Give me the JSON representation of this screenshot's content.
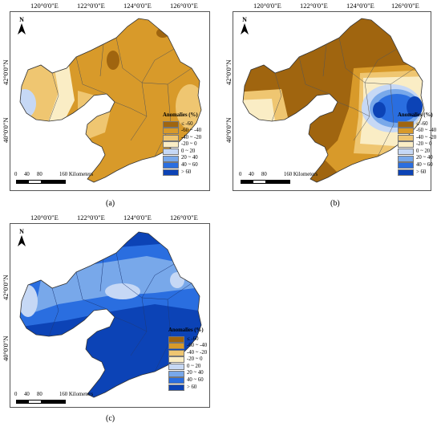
{
  "axis_ticks": {
    "top": [
      "120°0'0\"E",
      "122°0'0\"E",
      "124°0'0\"E",
      "126°0'0\"E"
    ],
    "left": [
      "42°0'0\"N",
      "40°0'0\"N"
    ]
  },
  "north_label": "N",
  "scale": {
    "labels": [
      "0",
      "40",
      "80",
      "160 Kilometers"
    ]
  },
  "legend": {
    "title": "Anomalies (%)",
    "classes": [
      {
        "label": "≤ -60",
        "color": "#a0650f"
      },
      {
        "label": "-60 ~ -40",
        "color": "#d89a2a"
      },
      {
        "label": "-40 ~ -20",
        "color": "#efc671"
      },
      {
        "label": "-20 ~ 0",
        "color": "#faedc5"
      },
      {
        "label": "0 ~ 20",
        "color": "#c6d8f5"
      },
      {
        "label": "20 ~ 40",
        "color": "#78a8ea"
      },
      {
        "label": "40 ~ 60",
        "color": "#2a6ee0"
      },
      {
        "label": "> 60",
        "color": "#0c43b6"
      }
    ]
  },
  "panels": [
    {
      "id": "a",
      "caption": "(a)"
    },
    {
      "id": "b",
      "caption": "(b)"
    },
    {
      "id": "c",
      "caption": "(c)"
    }
  ]
}
